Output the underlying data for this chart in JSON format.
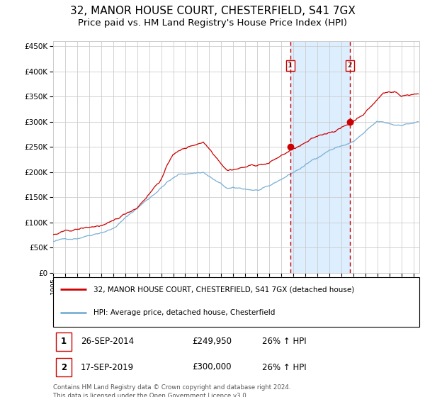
{
  "title": "32, MANOR HOUSE COURT, CHESTERFIELD, S41 7GX",
  "subtitle": "Price paid vs. HM Land Registry's House Price Index (HPI)",
  "ylim": [
    0,
    460000
  ],
  "yticks": [
    0,
    50000,
    100000,
    150000,
    200000,
    250000,
    300000,
    350000,
    400000,
    450000
  ],
  "start_year": 1995.0,
  "end_year": 2025.5,
  "sale1_date": 2014.74,
  "sale1_price": 249950,
  "sale2_date": 2019.72,
  "sale2_price": 300000,
  "red_line_color": "#cc0000",
  "blue_line_color": "#7ab0d4",
  "shade_color": "#ddeeff",
  "grid_color": "#cccccc",
  "background_color": "#ffffff",
  "title_fontsize": 11,
  "subtitle_fontsize": 9.5,
  "legend_label1": "32, MANOR HOUSE COURT, CHESTERFIELD, S41 7GX (detached house)",
  "legend_label2": "HPI: Average price, detached house, Chesterfield",
  "table_row1": [
    "1",
    "26-SEP-2014",
    "£249,950",
    "26% ↑ HPI"
  ],
  "table_row2": [
    "2",
    "17-SEP-2019",
    "£300,000",
    "26% ↑ HPI"
  ],
  "footer": "Contains HM Land Registry data © Crown copyright and database right 2024.\nThis data is licensed under the Open Government Licence v3.0."
}
